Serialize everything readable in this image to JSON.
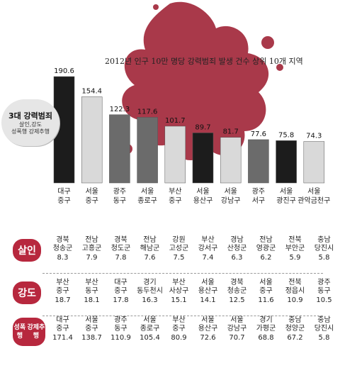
{
  "title": "2012년 인구 10만 명당 강력범죄 발생 건수 상위 10개 지역",
  "callout": {
    "heading": "3대 강력범죄",
    "line1": "살인,강도",
    "line2": "성폭행 강제추행"
  },
  "chart_data": {
    "type": "bar",
    "title": "2012년 인구 10만 명당 강력범죄 발생 건수 상위 10개 지역",
    "categories": [
      "대구\n중구",
      "서울\n중구",
      "광주\n동구",
      "서울\n종로구",
      "부산\n중구",
      "서울\n용산구",
      "서울\n강남구",
      "광주\n서구",
      "서울\n광진구",
      "서울\n관악금천구"
    ],
    "values": [
      190.6,
      154.4,
      122.3,
      117.6,
      101.7,
      89.7,
      81.7,
      77.6,
      75.8,
      74.3
    ],
    "bar_colors": [
      "#1c1c1c",
      "#d9d9d9",
      "#6b6b6b",
      "#6b6b6b",
      "#d9d9d9",
      "#1c1c1c",
      "#d9d9d9",
      "#6b6b6b",
      "#1c1c1c",
      "#d9d9d9"
    ],
    "ylim": [
      0,
      200
    ]
  },
  "tables": [
    {
      "label": "살인",
      "entries": [
        {
          "region": "경북",
          "district": "청송군",
          "value": "8.3"
        },
        {
          "region": "전남",
          "district": "고흥군",
          "value": "7.9"
        },
        {
          "region": "경북",
          "district": "청도군",
          "value": "7.8"
        },
        {
          "region": "전남",
          "district": "해남군",
          "value": "7.6"
        },
        {
          "region": "강원",
          "district": "고성군",
          "value": "7.5"
        },
        {
          "region": "부산",
          "district": "강서구",
          "value": "7.4"
        },
        {
          "region": "경남",
          "district": "산청군",
          "value": "6.3"
        },
        {
          "region": "전남",
          "district": "영광군",
          "value": "6.2"
        },
        {
          "region": "전북",
          "district": "부안군",
          "value": "5.9"
        },
        {
          "region": "충남",
          "district": "당진시",
          "value": "5.8"
        }
      ]
    },
    {
      "label": "강도",
      "entries": [
        {
          "region": "부산",
          "district": "중구",
          "value": "18.7"
        },
        {
          "region": "부산",
          "district": "동구",
          "value": "18.1"
        },
        {
          "region": "대구",
          "district": "중구",
          "value": "17.8"
        },
        {
          "region": "경기",
          "district": "동두천시",
          "value": "16.3"
        },
        {
          "region": "부산",
          "district": "사상구",
          "value": "15.1"
        },
        {
          "region": "서울",
          "district": "용산구",
          "value": "14.1"
        },
        {
          "region": "경북",
          "district": "청송군",
          "value": "12.5"
        },
        {
          "region": "서울",
          "district": "중구",
          "value": "11.6"
        },
        {
          "region": "전북",
          "district": "정읍시",
          "value": "10.9"
        },
        {
          "region": "광주",
          "district": "동구",
          "value": "10.5"
        }
      ]
    },
    {
      "label": "성폭행\n강제추행",
      "entries": [
        {
          "region": "대구",
          "district": "중구",
          "value": "171.4"
        },
        {
          "region": "서울",
          "district": "중구",
          "value": "138.7"
        },
        {
          "region": "광주",
          "district": "동구",
          "value": "110.9"
        },
        {
          "region": "서울",
          "district": "종로구",
          "value": "105.4"
        },
        {
          "region": "부산",
          "district": "중구",
          "value": "80.9"
        },
        {
          "region": "서울",
          "district": "용산구",
          "value": "72.6"
        },
        {
          "region": "서울",
          "district": "강남구",
          "value": "70.7"
        },
        {
          "region": "경기",
          "district": "가평군",
          "value": "68.8"
        },
        {
          "region": "충남",
          "district": "청양군",
          "value": "67.2"
        },
        {
          "region": "충남",
          "district": "당진시",
          "value": "5.8"
        }
      ]
    }
  ],
  "colors": {
    "accent": "#b7283e",
    "splash": "#a9394a"
  }
}
